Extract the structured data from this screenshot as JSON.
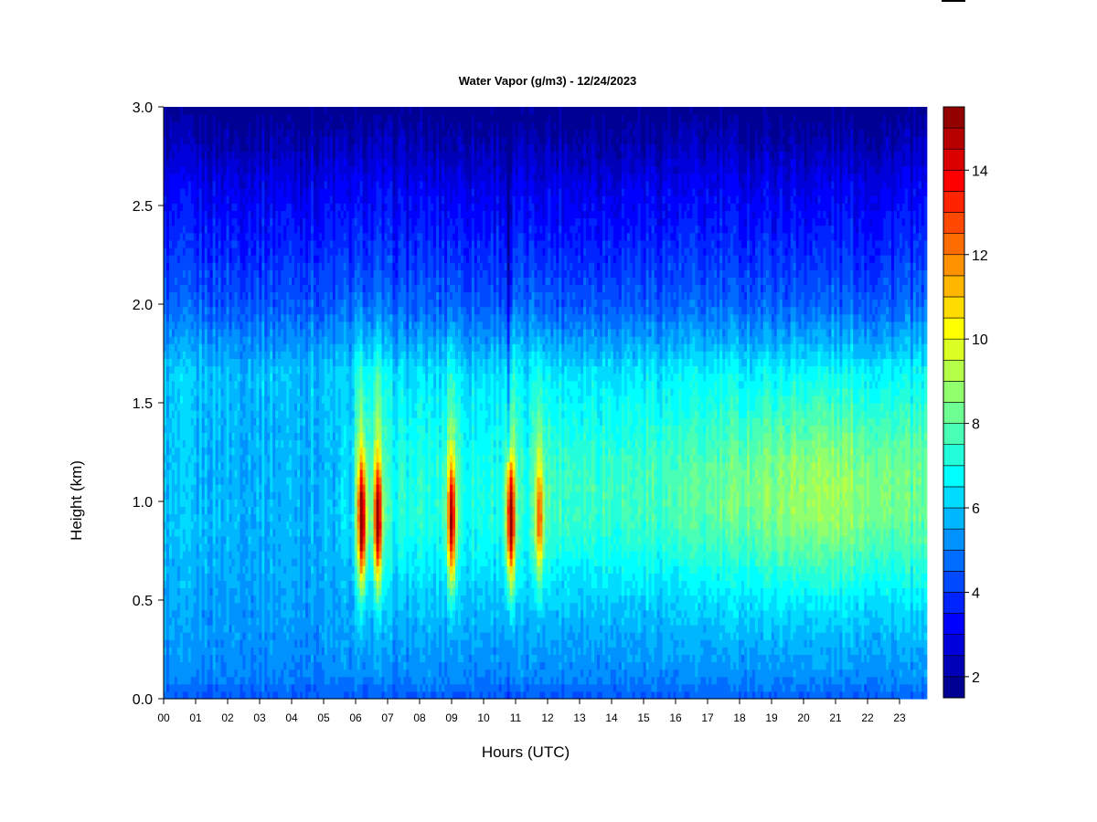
{
  "chart_data": {
    "type": "heatmap",
    "title": "Water Vapor (g/m3) - 12/24/2023",
    "xlabel": "Hours (UTC)",
    "ylabel": "Height (km)",
    "xlim": [
      0,
      24
    ],
    "ylim": [
      0.0,
      3.0
    ],
    "x_ticks": [
      0,
      1,
      2,
      3,
      4,
      5,
      6,
      7,
      8,
      9,
      10,
      11,
      12,
      13,
      14,
      15,
      16,
      17,
      18,
      19,
      20,
      21,
      22,
      23
    ],
    "x_tick_labels": [
      "00",
      "01",
      "02",
      "03",
      "04",
      "05",
      "06",
      "07",
      "08",
      "09",
      "10",
      "11",
      "12",
      "13",
      "14",
      "15",
      "16",
      "17",
      "18",
      "19",
      "20",
      "21",
      "22",
      "23"
    ],
    "y_ticks": [
      0.0,
      0.5,
      1.0,
      1.5,
      2.0,
      2.5,
      3.0
    ],
    "y_tick_labels": [
      "0.0",
      "0.5",
      "1.0",
      "1.5",
      "2.0",
      "2.5",
      "3.0"
    ],
    "colorbar": {
      "range": [
        1.5,
        15.5
      ],
      "levels": 28,
      "ticks": [
        2,
        4,
        6,
        8,
        10,
        12,
        14
      ],
      "tick_labels": [
        "2",
        "4",
        "6",
        "8",
        "10",
        "12",
        "14"
      ],
      "colormap": "jet"
    },
    "features": {
      "near_surface_value": 4.5,
      "top_value": 2.0,
      "peak_layer_height_km": 0.9,
      "moist_bursts": [
        {
          "hour": 6.2,
          "peak": 14.5
        },
        {
          "hour": 6.7,
          "peak": 13.5
        },
        {
          "hour": 9.0,
          "peak": 13.5
        },
        {
          "hour": 10.85,
          "peak": 14.0
        },
        {
          "hour": 11.75,
          "peak": 11.0
        }
      ],
      "dry_streak_hour": 10.8,
      "data_end_hour": 23.85
    }
  }
}
